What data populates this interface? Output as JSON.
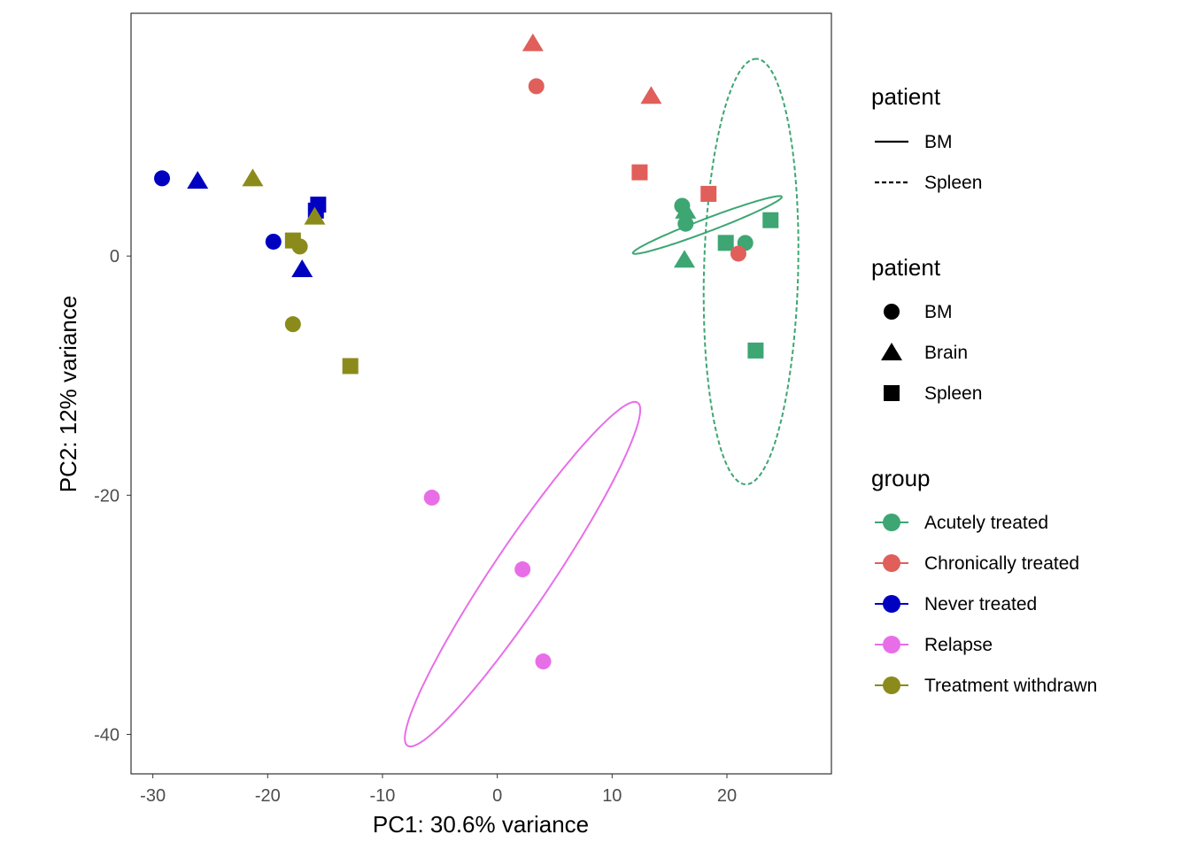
{
  "chart_data": {
    "type": "scatter",
    "xlabel": "PC1: 30.6% variance",
    "ylabel": "PC2: 12% variance",
    "xlim": [
      -31.9,
      29.1
    ],
    "ylim": [
      -43.3,
      20.3
    ],
    "x_ticks": [
      -30,
      -20,
      -10,
      0,
      10,
      20
    ],
    "x_tick_labels": [
      "-30",
      "-20",
      "-10",
      "0",
      "10",
      "20"
    ],
    "y_ticks": [
      0,
      -20,
      -40
    ],
    "y_tick_labels": [
      "0",
      "-20",
      "-40"
    ],
    "grid": false,
    "groups": [
      {
        "name": "Acutely treated",
        "color": "#3DA672"
      },
      {
        "name": "Chronically treated",
        "color": "#E05F5B"
      },
      {
        "name": "Never treated",
        "color": "#0000C0"
      },
      {
        "name": "Relapse",
        "color": "#E86EE8"
      },
      {
        "name": "Treatment withdrawn",
        "color": "#8B8B1C"
      }
    ],
    "series": [
      {
        "name": "Acutely treated",
        "points": [
          {
            "x": 16.1,
            "y": 4.2,
            "shape": "BM"
          },
          {
            "x": 16.4,
            "y": 2.7,
            "shape": "BM"
          },
          {
            "x": 21.6,
            "y": 1.1,
            "shape": "BM"
          },
          {
            "x": 16.4,
            "y": 3.8,
            "shape": "Brain"
          },
          {
            "x": 16.3,
            "y": -0.3,
            "shape": "Brain"
          },
          {
            "x": 23.8,
            "y": 3.0,
            "shape": "Spleen"
          },
          {
            "x": 19.9,
            "y": 1.1,
            "shape": "Spleen"
          },
          {
            "x": 22.5,
            "y": -7.9,
            "shape": "Spleen"
          }
        ]
      },
      {
        "name": "Chronically treated",
        "points": [
          {
            "x": 3.4,
            "y": 14.2,
            "shape": "BM"
          },
          {
            "x": 21.0,
            "y": 0.2,
            "shape": "BM"
          },
          {
            "x": 3.1,
            "y": 17.8,
            "shape": "Brain"
          },
          {
            "x": 13.4,
            "y": 13.4,
            "shape": "Brain"
          },
          {
            "x": 12.4,
            "y": 7.0,
            "shape": "Spleen"
          },
          {
            "x": 18.4,
            "y": 5.2,
            "shape": "Spleen"
          }
        ]
      },
      {
        "name": "Never treated",
        "points": [
          {
            "x": -29.2,
            "y": 6.5,
            "shape": "BM"
          },
          {
            "x": -19.5,
            "y": 1.2,
            "shape": "BM"
          },
          {
            "x": -26.1,
            "y": 6.3,
            "shape": "Brain"
          },
          {
            "x": -17.0,
            "y": -1.1,
            "shape": "Brain"
          },
          {
            "x": -15.6,
            "y": 4.3,
            "shape": "Spleen"
          },
          {
            "x": -15.8,
            "y": 3.8,
            "shape": "Spleen"
          }
        ]
      },
      {
        "name": "Relapse",
        "points": [
          {
            "x": -5.7,
            "y": -20.2,
            "shape": "BM"
          },
          {
            "x": 2.2,
            "y": -26.2,
            "shape": "BM"
          },
          {
            "x": 4.0,
            "y": -33.9,
            "shape": "BM"
          }
        ]
      },
      {
        "name": "Treatment withdrawn",
        "points": [
          {
            "x": -17.2,
            "y": 0.8,
            "shape": "BM"
          },
          {
            "x": -17.8,
            "y": -5.7,
            "shape": "BM"
          },
          {
            "x": -21.3,
            "y": 6.5,
            "shape": "Brain"
          },
          {
            "x": -15.9,
            "y": 3.3,
            "shape": "Brain"
          },
          {
            "x": -17.8,
            "y": 1.3,
            "shape": "Spleen"
          },
          {
            "x": -12.8,
            "y": -9.2,
            "shape": "Spleen"
          }
        ]
      }
    ],
    "ellipses": [
      {
        "group": "Relapse",
        "patient": "BM",
        "linetype": "solid",
        "cx": 2.2,
        "cy": -26.6,
        "rx": 17.5,
        "ry": 2.55,
        "angle_deg": 55.0
      },
      {
        "group": "Acutely treated",
        "patient": "BM",
        "linetype": "solid",
        "cx": 18.3,
        "cy": 2.6,
        "rx": 6.9,
        "ry": 0.55,
        "angle_deg": 20.0
      },
      {
        "group": "Acutely treated",
        "patient": "Spleen",
        "linetype": "dashed",
        "cx": 22.1,
        "cy": -1.3,
        "rx": 17.8,
        "ry": 4.1,
        "angle_deg": 88.5
      }
    ],
    "legends": [
      {
        "title": "patient",
        "kind": "linetype",
        "items": [
          {
            "label": "BM",
            "linetype": "solid"
          },
          {
            "label": "Spleen",
            "linetype": "dashed"
          }
        ]
      },
      {
        "title": "patient",
        "kind": "shape",
        "items": [
          {
            "label": "BM",
            "shape": "BM"
          },
          {
            "label": "Brain",
            "shape": "Brain"
          },
          {
            "label": "Spleen",
            "shape": "Spleen"
          }
        ]
      },
      {
        "title": "group",
        "kind": "color",
        "items": [
          {
            "label": "Acutely treated",
            "color": "#3DA672"
          },
          {
            "label": "Chronically treated",
            "color": "#E05F5B"
          },
          {
            "label": "Never treated",
            "color": "#0000C0"
          },
          {
            "label": "Relapse",
            "color": "#E86EE8"
          },
          {
            "label": "Treatment withdrawn",
            "color": "#8B8B1C"
          }
        ]
      }
    ]
  }
}
